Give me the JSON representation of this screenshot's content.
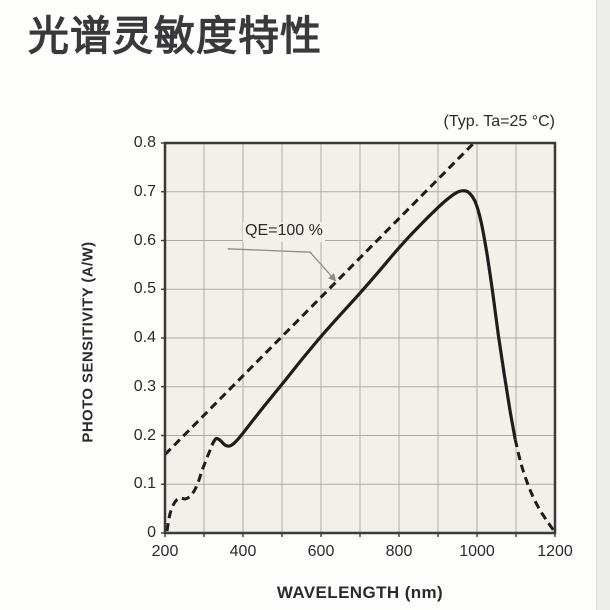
{
  "page": {
    "title": "光谱灵敏度特性"
  },
  "chart_data": {
    "type": "line",
    "condition_label": "(Typ. Ta=25 °C)",
    "xlabel": "WAVELENGTH (nm)",
    "ylabel": "PHOTO SENSITIVITY (A/W)",
    "xlim": [
      200,
      1200
    ],
    "ylim": [
      0,
      0.8
    ],
    "x_ticks": [
      200,
      400,
      600,
      800,
      1000,
      1200
    ],
    "x_grid_step": 100,
    "y_ticks": [
      0,
      0.1,
      0.2,
      0.3,
      0.4,
      0.5,
      0.6,
      0.7,
      0.8
    ],
    "y_grid_step": 0.1,
    "grid": true,
    "legend": "none",
    "colors": {
      "plot_bg": "#f2f0e8",
      "grid": "#aeaca3",
      "border": "#3a3a38",
      "curve": "#1d1d1c",
      "text": "#2b2b2d",
      "leader": "#8d8d87"
    },
    "annotation": {
      "label": "QE=100 %",
      "label_anchor": [
        400,
        0.638
      ],
      "leader_points": [
        [
          361,
          0.583
        ],
        [
          572,
          0.576
        ],
        [
          638,
          0.517
        ]
      ]
    },
    "series": [
      {
        "name": "qe-100-percent-line",
        "label": "QE=100 %",
        "style": "dashed",
        "points": [
          [
            200,
            0.161
          ],
          [
            992,
            0.8
          ]
        ]
      },
      {
        "name": "sensitivity-uv-extrapolation",
        "style": "dashed",
        "points": [
          [
            205,
            0.004
          ],
          [
            213,
            0.04
          ],
          [
            225,
            0.063
          ],
          [
            238,
            0.072
          ],
          [
            252,
            0.07
          ],
          [
            268,
            0.078
          ],
          [
            283,
            0.1
          ],
          [
            296,
            0.13
          ],
          [
            308,
            0.155
          ],
          [
            319,
            0.176
          ]
        ]
      },
      {
        "name": "sensitivity-typical",
        "style": "solid",
        "points": [
          [
            320,
            0.18
          ],
          [
            330,
            0.193
          ],
          [
            340,
            0.191
          ],
          [
            355,
            0.18
          ],
          [
            368,
            0.179
          ],
          [
            382,
            0.188
          ],
          [
            400,
            0.205
          ],
          [
            450,
            0.256
          ],
          [
            500,
            0.305
          ],
          [
            550,
            0.355
          ],
          [
            600,
            0.403
          ],
          [
            650,
            0.448
          ],
          [
            700,
            0.492
          ],
          [
            750,
            0.538
          ],
          [
            800,
            0.585
          ],
          [
            850,
            0.628
          ],
          [
            890,
            0.66
          ],
          [
            920,
            0.682
          ],
          [
            945,
            0.697
          ],
          [
            962,
            0.702
          ],
          [
            978,
            0.699
          ],
          [
            995,
            0.68
          ],
          [
            1010,
            0.64
          ],
          [
            1025,
            0.575
          ],
          [
            1040,
            0.495
          ],
          [
            1055,
            0.405
          ],
          [
            1070,
            0.325
          ],
          [
            1085,
            0.25
          ],
          [
            1098,
            0.192
          ]
        ]
      },
      {
        "name": "sensitivity-ir-extrapolation",
        "style": "dashed",
        "points": [
          [
            1098,
            0.192
          ],
          [
            1112,
            0.145
          ],
          [
            1128,
            0.105
          ],
          [
            1145,
            0.072
          ],
          [
            1163,
            0.045
          ],
          [
            1180,
            0.024
          ],
          [
            1196,
            0.006
          ]
        ]
      }
    ]
  }
}
